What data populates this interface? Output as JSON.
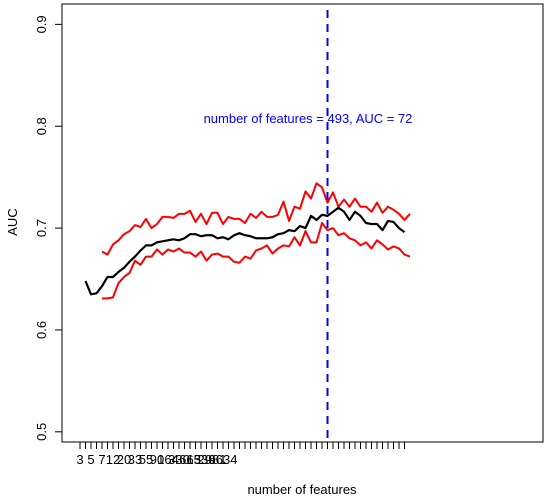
{
  "chart_data": {
    "type": "line",
    "title": "",
    "xlabel": "number of features",
    "ylabel": "AUC",
    "x_tick_labels": [
      "3",
      "5",
      "7",
      "12",
      "20",
      "33",
      "55",
      "90",
      "164",
      "330",
      "665",
      "1339",
      "2981",
      "6634"
    ],
    "y_ticks": [
      0.5,
      0.6,
      0.7,
      0.8,
      0.9
    ],
    "y_tick_labels": [
      "0.5",
      "0.6",
      "0.7",
      "0.8",
      "0.9"
    ],
    "ylim": [
      0.49,
      0.92
    ],
    "grid": false,
    "legend": "none",
    "colors": {
      "mean": "#000000",
      "upper": "#ff0000",
      "lower": "#ff0000",
      "marker": "#0000ff"
    },
    "x_note": "x positions are the index of each feature-count step (step 1 = 4 features ... step 59 = 6634 features); tick labels above map to steps 0,2,4,...,56",
    "series": [
      {
        "key": "mean",
        "start_index": 1,
        "values": [
          0.648,
          0.635,
          0.636,
          0.643,
          0.652,
          0.652,
          0.657,
          0.661,
          0.667,
          0.672,
          0.678,
          0.683,
          0.683,
          0.686,
          0.687,
          0.688,
          0.689,
          0.688,
          0.69,
          0.694,
          0.694,
          0.692,
          0.693,
          0.693,
          0.69,
          0.691,
          0.689,
          0.693,
          0.695,
          0.693,
          0.692,
          0.69,
          0.69,
          0.69,
          0.691,
          0.694,
          0.695,
          0.698,
          0.697,
          0.702,
          0.7,
          0.712,
          0.708,
          0.713,
          0.712,
          0.716,
          0.72,
          0.716,
          0.708,
          0.716,
          0.712,
          0.705,
          0.704,
          0.704,
          0.698,
          0.707,
          0.706,
          0.7,
          0.696
        ]
      },
      {
        "key": "upper",
        "start_index": 4,
        "values": [
          0.677,
          0.674,
          0.684,
          0.688,
          0.694,
          0.697,
          0.703,
          0.701,
          0.709,
          0.7,
          0.704,
          0.711,
          0.711,
          0.71,
          0.714,
          0.714,
          0.717,
          0.706,
          0.714,
          0.704,
          0.715,
          0.715,
          0.704,
          0.711,
          0.709,
          0.709,
          0.705,
          0.714,
          0.71,
          0.716,
          0.711,
          0.711,
          0.713,
          0.726,
          0.707,
          0.721,
          0.719,
          0.736,
          0.729,
          0.744,
          0.74,
          0.725,
          0.735,
          0.721,
          0.728,
          0.721,
          0.729,
          0.721,
          0.721,
          0.716,
          0.725,
          0.715,
          0.721,
          0.718,
          0.714,
          0.708,
          0.714
        ]
      },
      {
        "key": "lower",
        "start_index": 4,
        "values": [
          0.631,
          0.631,
          0.632,
          0.646,
          0.652,
          0.656,
          0.668,
          0.664,
          0.672,
          0.672,
          0.679,
          0.674,
          0.679,
          0.677,
          0.68,
          0.676,
          0.676,
          0.672,
          0.677,
          0.668,
          0.674,
          0.675,
          0.672,
          0.672,
          0.667,
          0.666,
          0.672,
          0.67,
          0.678,
          0.68,
          0.683,
          0.675,
          0.68,
          0.683,
          0.682,
          0.691,
          0.683,
          0.697,
          0.686,
          0.686,
          0.705,
          0.698,
          0.7,
          0.693,
          0.695,
          0.69,
          0.688,
          0.683,
          0.686,
          0.68,
          0.688,
          0.684,
          0.679,
          0.682,
          0.68,
          0.674,
          0.672
        ]
      }
    ],
    "vline_step": 45,
    "annotation": "number of features = 493, AUC = 72"
  }
}
